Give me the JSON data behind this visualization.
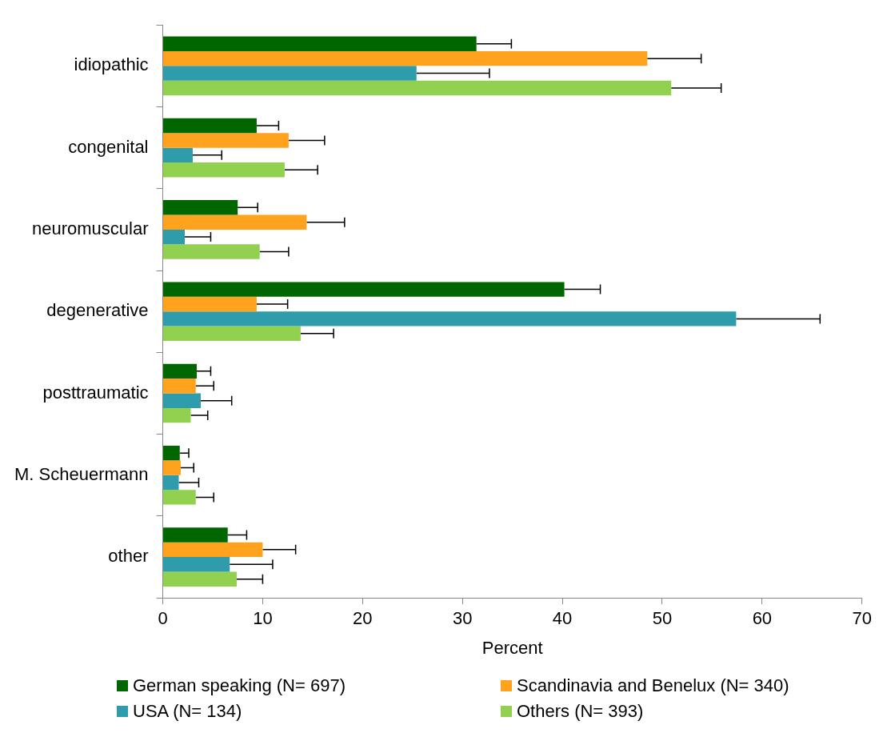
{
  "chart_data": {
    "type": "bar",
    "orientation": "horizontal",
    "xlabel": "Percent",
    "categories": [
      "idiopathic",
      "congenital",
      "neuromuscular",
      "degenerative",
      "posttraumatic",
      "M. Scheuermann",
      "other"
    ],
    "series": [
      {
        "name": "German speaking (N= 697)",
        "color": "#006600",
        "values": [
          31.4,
          9.4,
          7.5,
          40.2,
          3.4,
          1.7,
          6.5
        ],
        "errors": [
          [
            31.4,
            34.9
          ],
          [
            9.4,
            11.6
          ],
          [
            7.5,
            9.5
          ],
          [
            40.2,
            43.8
          ],
          [
            3.4,
            4.8
          ],
          [
            1.7,
            2.6
          ],
          [
            6.5,
            8.4
          ]
        ]
      },
      {
        "name": "Scandinavia and Benelux (N= 340)",
        "color": "#ffa31f",
        "values": [
          48.5,
          12.6,
          14.4,
          9.4,
          3.3,
          1.8,
          10.0
        ],
        "errors": [
          [
            48.5,
            53.9
          ],
          [
            12.6,
            16.2
          ],
          [
            14.4,
            18.2
          ],
          [
            9.4,
            12.5
          ],
          [
            3.3,
            5.1
          ],
          [
            1.8,
            3.1
          ],
          [
            10.0,
            13.3
          ]
        ]
      },
      {
        "name": "USA (N= 134)",
        "color": "#2e9caa",
        "values": [
          25.4,
          3.0,
          2.2,
          57.4,
          3.8,
          1.6,
          6.7
        ],
        "errors": [
          [
            25.4,
            32.7
          ],
          [
            3.0,
            5.9
          ],
          [
            2.2,
            4.8
          ],
          [
            57.4,
            65.8
          ],
          [
            3.8,
            6.9
          ],
          [
            1.6,
            3.6
          ],
          [
            6.7,
            11.0
          ]
        ]
      },
      {
        "name": "Others (N= 393)",
        "color": "#92d050",
        "values": [
          50.9,
          12.2,
          9.7,
          13.8,
          2.8,
          3.3,
          7.4
        ],
        "errors": [
          [
            50.9,
            55.9
          ],
          [
            12.2,
            15.5
          ],
          [
            9.7,
            12.6
          ],
          [
            13.8,
            17.1
          ],
          [
            2.8,
            4.5
          ],
          [
            3.3,
            5.1
          ],
          [
            7.4,
            10.0
          ]
        ]
      }
    ],
    "xlim": [
      0,
      70
    ],
    "xticks": [
      0,
      10,
      20,
      30,
      40,
      50,
      60,
      70
    ],
    "grid": false,
    "legend": "bottom"
  }
}
